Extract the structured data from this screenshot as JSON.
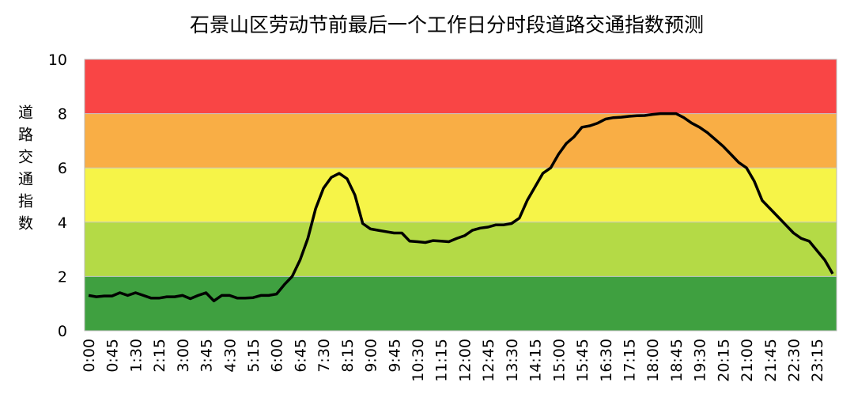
{
  "chart_data": {
    "type": "line",
    "title": "石景山区劳动节前最后一个工作日分时段道路交通指数预测",
    "y_label": "道路交通指数",
    "categories": [
      "0:00",
      null,
      null,
      "0:45",
      null,
      null,
      "1:30",
      null,
      null,
      "2:15",
      null,
      null,
      "3:00",
      null,
      null,
      "3:45",
      null,
      null,
      "4:30",
      null,
      null,
      "5:15",
      null,
      null,
      "6:00",
      null,
      null,
      "6:45",
      null,
      null,
      "7:30",
      null,
      null,
      "8:15",
      null,
      null,
      "9:00",
      null,
      null,
      "9:45",
      null,
      null,
      "10:30",
      null,
      null,
      "11:15",
      null,
      null,
      "12:00",
      null,
      null,
      "12:45",
      null,
      null,
      "13:30",
      null,
      null,
      "14:15",
      null,
      null,
      "15:00",
      null,
      null,
      "15:45",
      null,
      null,
      "16:30",
      null,
      null,
      "17:15",
      null,
      null,
      "18:00",
      null,
      null,
      "18:45",
      null,
      null,
      "19:30",
      null,
      null,
      "20:15",
      null,
      null,
      "21:00",
      null,
      null,
      "21:45",
      null,
      null,
      "22:30",
      null,
      null,
      "23:15",
      null,
      null
    ],
    "series": [
      {
        "color": "#000000",
        "values": [
          1.3,
          1.25,
          1.28,
          1.28,
          1.4,
          1.3,
          1.4,
          1.3,
          1.2,
          1.2,
          1.25,
          1.25,
          1.3,
          1.18,
          1.3,
          1.4,
          1.1,
          1.3,
          1.3,
          1.2,
          1.2,
          1.22,
          1.3,
          1.3,
          1.35,
          1.7,
          2.0,
          2.6,
          3.4,
          4.5,
          5.25,
          5.65,
          5.8,
          5.6,
          5.0,
          3.95,
          3.75,
          3.7,
          3.65,
          3.6,
          3.6,
          3.3,
          3.28,
          3.25,
          3.32,
          3.3,
          3.28,
          3.4,
          3.5,
          3.7,
          3.78,
          3.82,
          3.9,
          3.9,
          3.95,
          4.15,
          4.8,
          5.3,
          5.8,
          6.0,
          6.5,
          6.9,
          7.15,
          7.5,
          7.55,
          7.65,
          7.8,
          7.85,
          7.87,
          7.9,
          7.92,
          7.93,
          7.97,
          8.0,
          8.0,
          8.0,
          7.85,
          7.65,
          7.5,
          7.3,
          7.05,
          6.8,
          6.5,
          6.2,
          6.0,
          5.5,
          4.8,
          4.5,
          4.2,
          3.9,
          3.6,
          3.4,
          3.3,
          2.95,
          2.6,
          2.1
        ]
      }
    ],
    "bands": [
      {
        "from": 0,
        "to": 2,
        "color": "#3fa040"
      },
      {
        "from": 2,
        "to": 4,
        "color": "#b4da46"
      },
      {
        "from": 4,
        "to": 6,
        "color": "#f6f448"
      },
      {
        "from": 6,
        "to": 8,
        "color": "#f9ae45"
      },
      {
        "from": 8,
        "to": 10,
        "color": "#f94545"
      }
    ],
    "ylim": [
      0,
      10
    ],
    "yticks": [
      0,
      2,
      4,
      6,
      8,
      10
    ],
    "grid": true
  }
}
